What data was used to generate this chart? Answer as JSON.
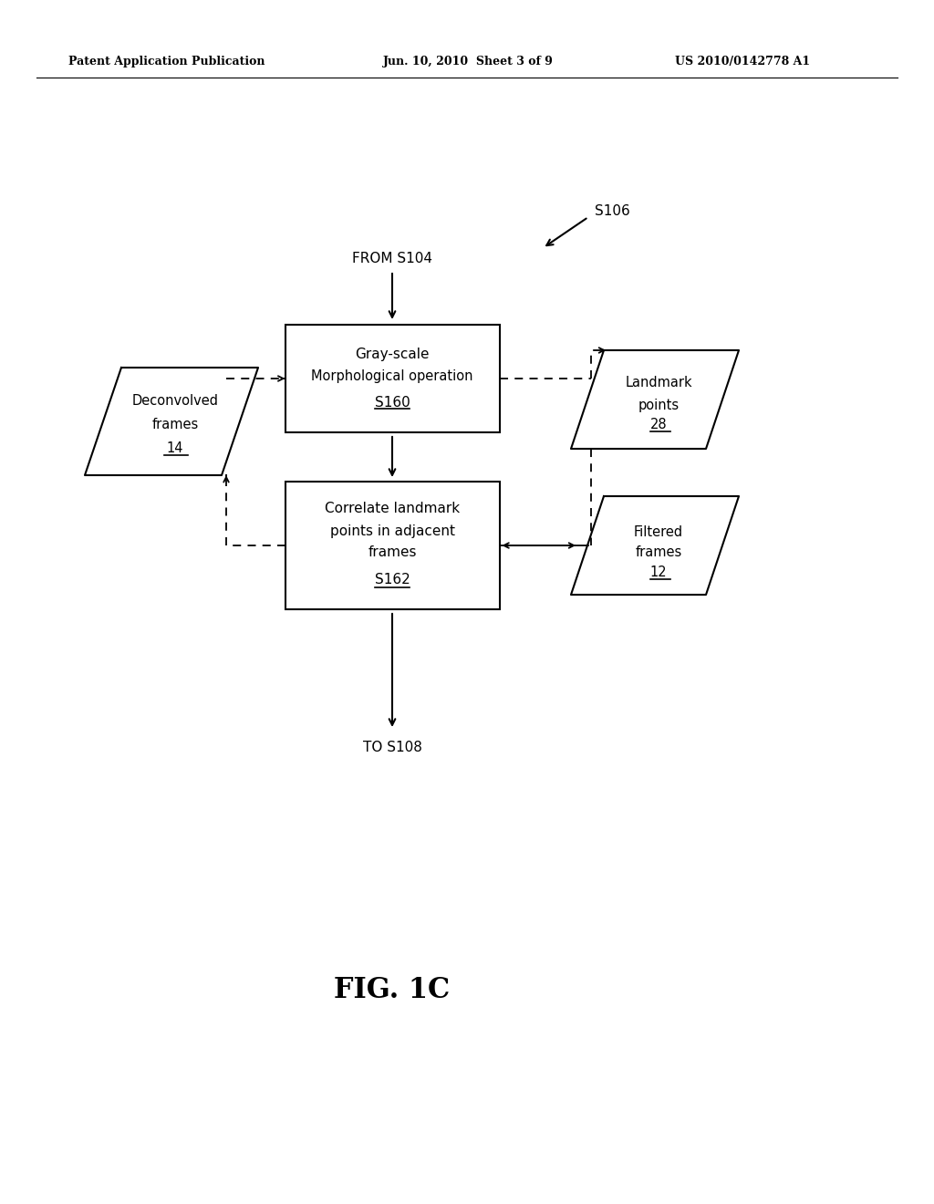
{
  "header_left": "Patent Application Publication",
  "header_mid": "Jun. 10, 2010  Sheet 3 of 9",
  "header_right": "US 2010/0142778 A1",
  "figure_label": "FIG. 1C",
  "s106_label": "S106",
  "from_label": "FROM S104",
  "to_label": "TO S108",
  "box1_text1": "Gray-scale",
  "box1_text2": "Morphological operation",
  "box1_text3": "S160",
  "box2_text1": "Correlate landmark",
  "box2_text2": "points in adjacent",
  "box2_text3": "frames",
  "box2_text4": "S162",
  "d1_text1": "Deconvolved",
  "d1_text2": "frames",
  "d1_text3": "14",
  "d2_text1": "Landmark",
  "d2_text2": "points",
  "d2_text3": "28",
  "d3_text1": "Filtered",
  "d3_text2": "frames",
  "d3_text3": "12",
  "bg_color": "#ffffff",
  "line_color": "#000000",
  "text_color": "#000000"
}
